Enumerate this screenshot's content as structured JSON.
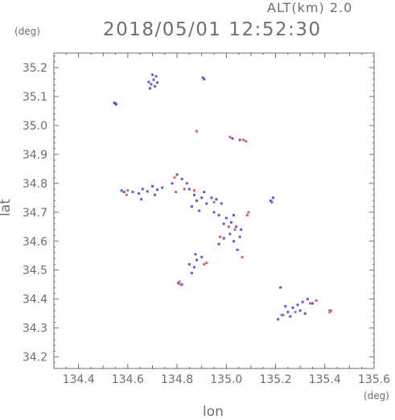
{
  "header": {
    "subtitle": "ALT(km) 2.0",
    "title": "2018/05/01 12:52:30"
  },
  "chart_data": {
    "type": "scatter",
    "title": "2018/05/01 12:52:30",
    "subtitle": "ALT(km) 2.0",
    "xlabel": "lon",
    "ylabel": "lat",
    "xunit": "(deg)",
    "yunit": "(deg)",
    "xlim": [
      134.3,
      135.6
    ],
    "ylim": [
      34.16,
      35.25
    ],
    "xticks": [
      134.4,
      134.6,
      134.8,
      135.0,
      135.2,
      135.4,
      135.6
    ],
    "xtick_labels": [
      "134.4",
      "134.6",
      "134.8",
      "135.0",
      "135.2",
      "135.4",
      "135.6"
    ],
    "yticks": [
      34.2,
      34.3,
      34.4,
      34.5,
      34.6,
      34.7,
      34.8,
      34.9,
      35.0,
      35.1,
      35.2
    ],
    "ytick_labels": [
      "34.2",
      "34.3",
      "34.4",
      "34.5",
      "34.6",
      "34.7",
      "34.8",
      "34.9",
      "35.0",
      "35.1",
      "35.2"
    ],
    "grid": false,
    "colors": {
      "positive": "#e06060",
      "negative": "#5a5ae6",
      "axis": "#6e6e6e"
    },
    "series": [
      {
        "name": "",
        "color": "#5a5ae6",
        "points": [
          [
            134.545,
            35.078
          ],
          [
            134.55,
            35.076
          ],
          [
            134.553,
            35.073
          ],
          [
            134.685,
            35.15
          ],
          [
            134.695,
            35.142
          ],
          [
            134.705,
            35.158
          ],
          [
            134.71,
            35.135
          ],
          [
            134.715,
            35.17
          ],
          [
            134.72,
            35.148
          ],
          [
            134.69,
            35.128
          ],
          [
            134.7,
            35.175
          ],
          [
            134.905,
            35.165
          ],
          [
            134.91,
            35.16
          ],
          [
            134.575,
            34.775
          ],
          [
            134.585,
            34.77
          ],
          [
            134.62,
            34.77
          ],
          [
            134.645,
            34.765
          ],
          [
            134.66,
            34.78
          ],
          [
            134.68,
            34.772
          ],
          [
            134.7,
            34.79
          ],
          [
            134.71,
            34.76
          ],
          [
            134.72,
            34.778
          ],
          [
            134.74,
            34.785
          ],
          [
            134.78,
            34.8
          ],
          [
            134.8,
            34.83
          ],
          [
            134.82,
            34.815
          ],
          [
            134.84,
            34.8
          ],
          [
            134.85,
            34.78
          ],
          [
            134.87,
            34.76
          ],
          [
            134.88,
            34.74
          ],
          [
            134.9,
            34.75
          ],
          [
            134.92,
            34.73
          ],
          [
            134.94,
            34.75
          ],
          [
            134.96,
            34.745
          ],
          [
            134.98,
            34.73
          ],
          [
            134.86,
            34.72
          ],
          [
            134.89,
            34.705
          ],
          [
            134.91,
            34.77
          ],
          [
            134.95,
            34.7
          ],
          [
            134.97,
            34.69
          ],
          [
            135.0,
            34.68
          ],
          [
            135.02,
            34.665
          ],
          [
            135.04,
            34.65
          ],
          [
            135.06,
            34.64
          ],
          [
            134.99,
            34.66
          ],
          [
            135.03,
            34.69
          ],
          [
            135.015,
            34.625
          ],
          [
            135.03,
            34.6
          ],
          [
            135.055,
            34.615
          ],
          [
            135.045,
            34.57
          ],
          [
            134.97,
            34.59
          ],
          [
            134.99,
            34.61
          ],
          [
            134.85,
            34.52
          ],
          [
            134.87,
            34.51
          ],
          [
            134.88,
            34.535
          ],
          [
            134.9,
            34.545
          ],
          [
            134.86,
            34.49
          ],
          [
            134.875,
            34.555
          ],
          [
            134.805,
            34.455
          ],
          [
            134.82,
            34.45
          ],
          [
            135.18,
            34.74
          ],
          [
            135.19,
            34.75
          ],
          [
            135.185,
            34.735
          ],
          [
            135.22,
            34.44
          ],
          [
            135.21,
            34.33
          ],
          [
            135.23,
            34.345
          ],
          [
            135.25,
            34.355
          ],
          [
            135.27,
            34.37
          ],
          [
            135.29,
            34.38
          ],
          [
            135.31,
            34.39
          ],
          [
            135.33,
            34.4
          ],
          [
            135.35,
            34.385
          ],
          [
            135.26,
            34.34
          ],
          [
            135.3,
            34.36
          ],
          [
            135.32,
            34.35
          ],
          [
            135.24,
            34.375
          ],
          [
            135.42,
            34.36
          ],
          [
            135.025,
            34.955
          ],
          [
            135.055,
            34.95
          ],
          [
            134.655,
            34.745
          ]
        ]
      },
      {
        "name": "",
        "color": "#e06060",
        "points": [
          [
            134.88,
            34.98
          ],
          [
            135.015,
            34.96
          ],
          [
            135.07,
            34.95
          ],
          [
            135.08,
            34.945
          ],
          [
            134.595,
            34.76
          ],
          [
            134.6,
            34.775
          ],
          [
            134.79,
            34.82
          ],
          [
            134.795,
            34.77
          ],
          [
            134.83,
            34.78
          ],
          [
            134.87,
            34.775
          ],
          [
            134.95,
            34.735
          ],
          [
            135.085,
            34.69
          ],
          [
            135.09,
            34.7
          ],
          [
            135.01,
            34.65
          ],
          [
            135.035,
            34.64
          ],
          [
            135.065,
            34.545
          ],
          [
            134.91,
            34.52
          ],
          [
            134.92,
            34.525
          ],
          [
            134.81,
            34.46
          ],
          [
            134.815,
            34.45
          ],
          [
            135.225,
            34.345
          ],
          [
            135.28,
            34.355
          ],
          [
            135.34,
            34.385
          ],
          [
            135.365,
            34.395
          ],
          [
            135.42,
            34.355
          ],
          [
            135.425,
            34.36
          ],
          [
            134.975,
            34.615
          ]
        ]
      }
    ]
  }
}
